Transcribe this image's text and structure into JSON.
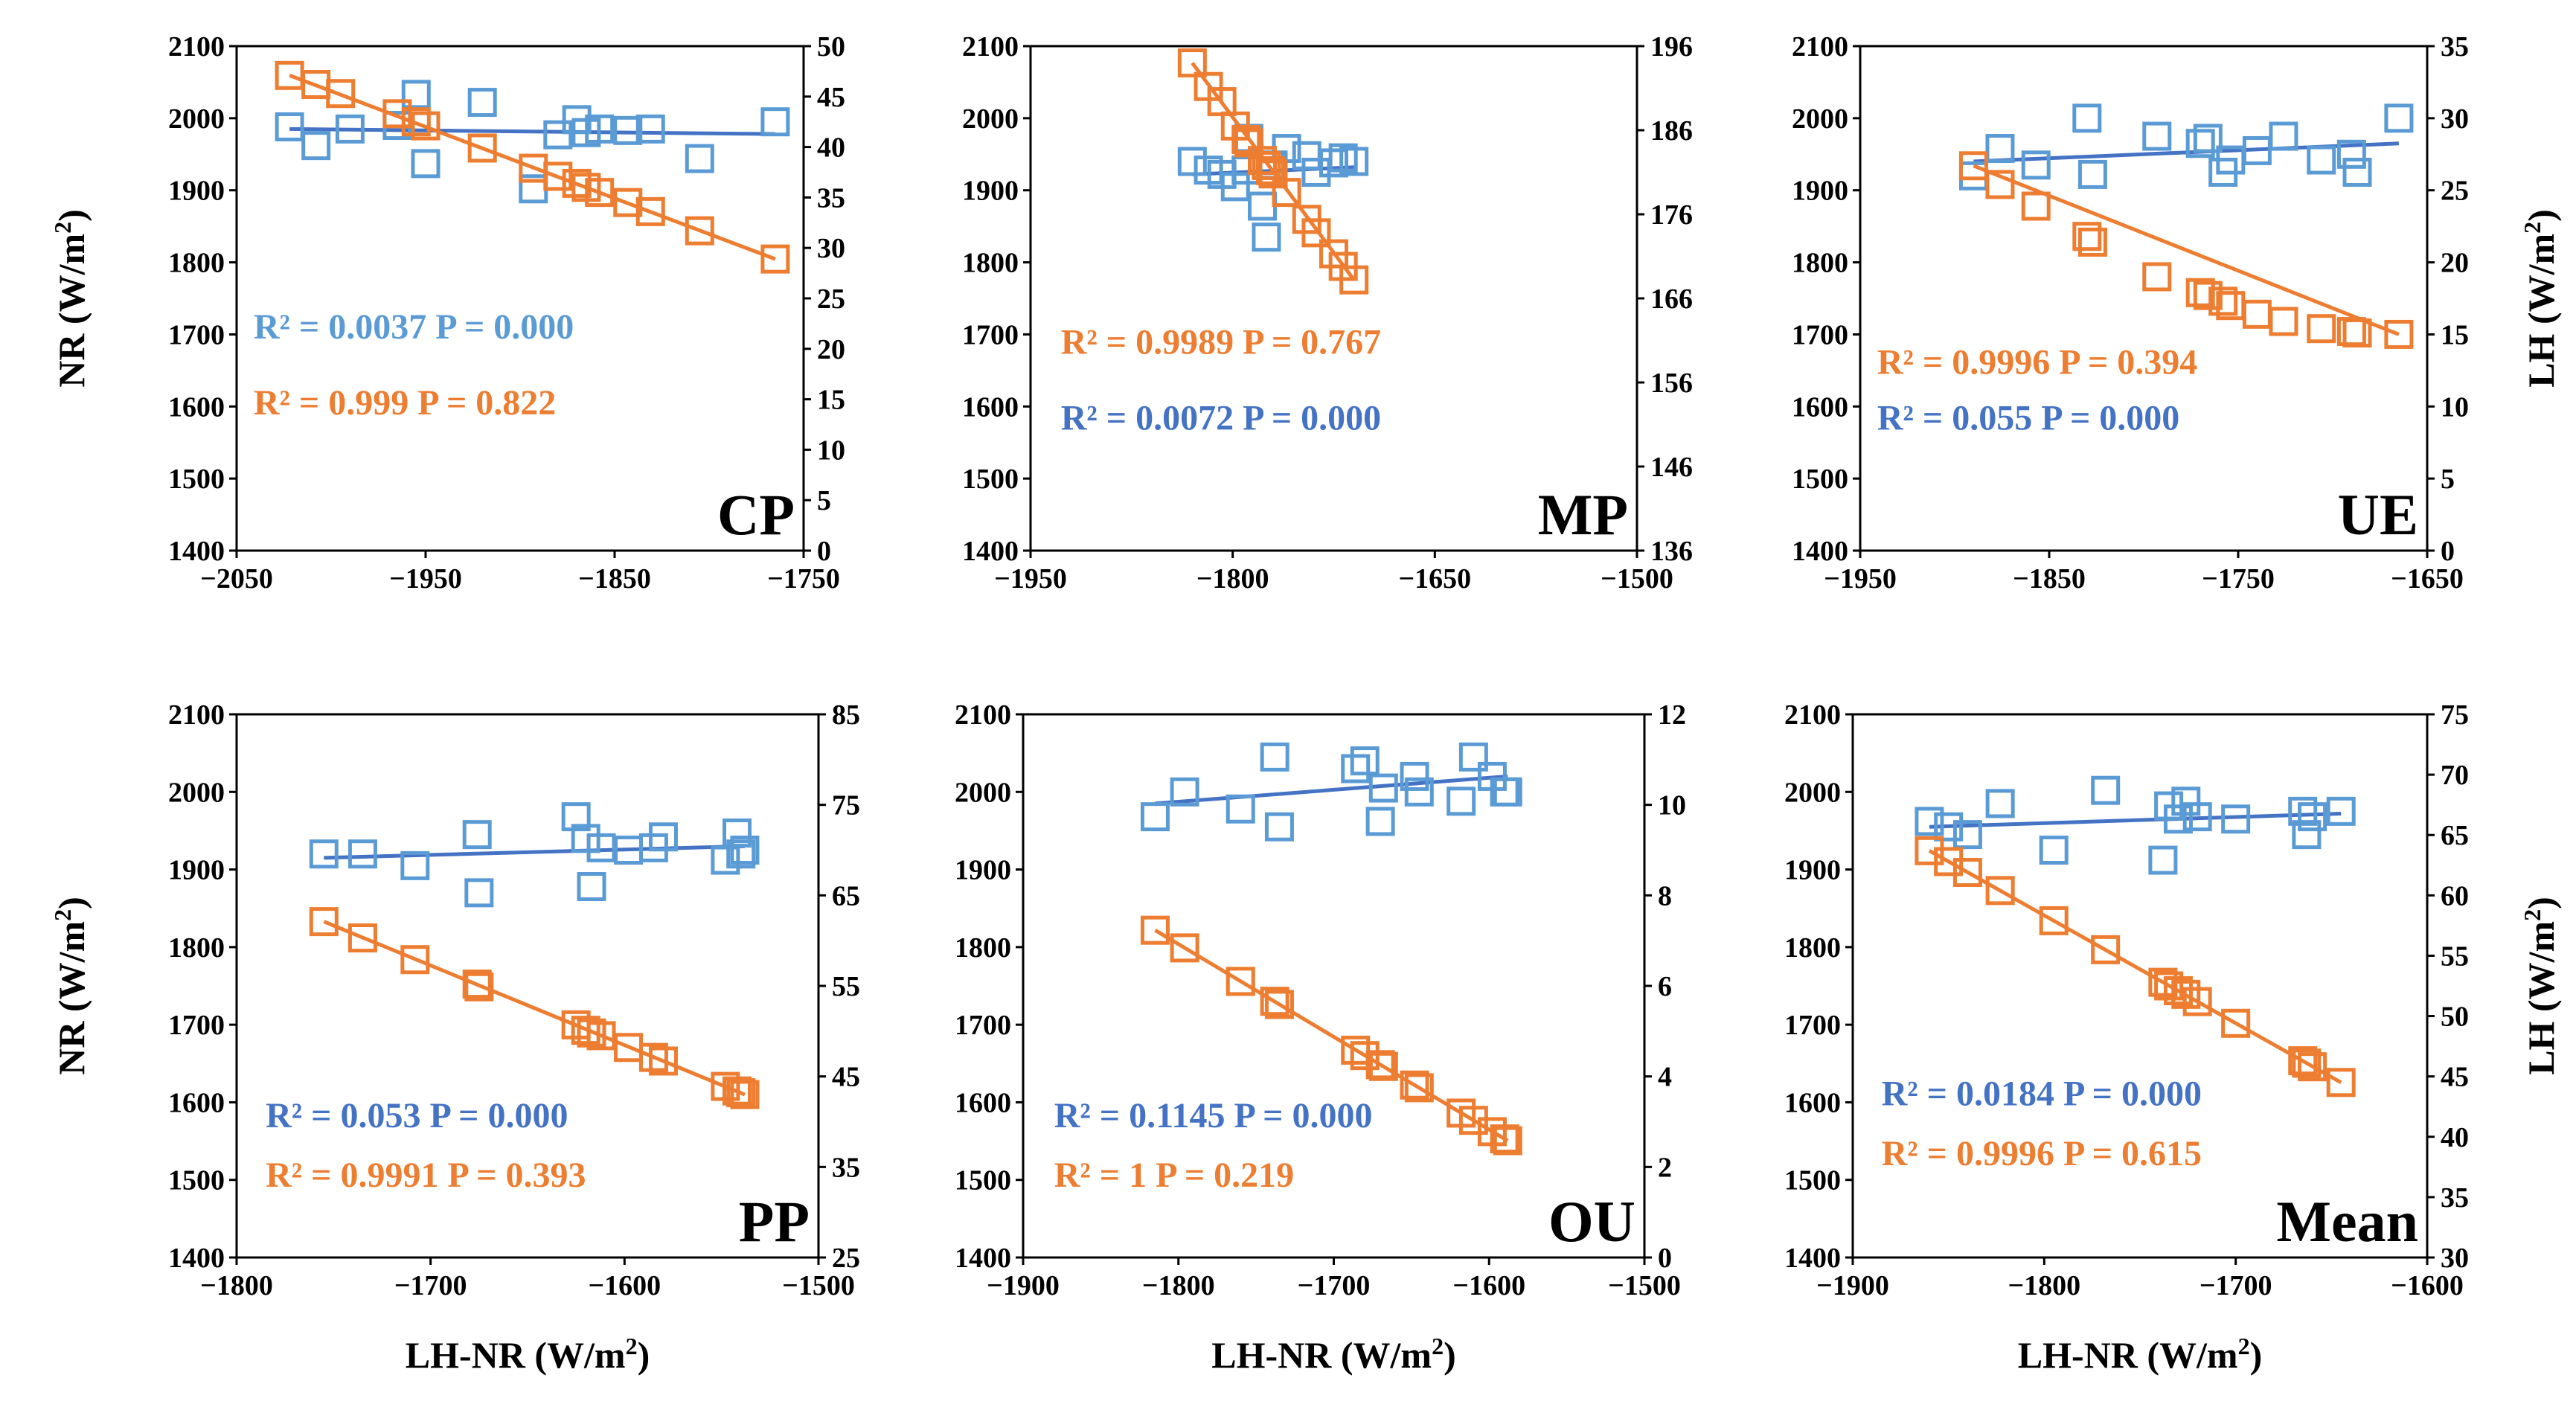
{
  "colors": {
    "series_nr": "#5b9bd5",
    "series_lh": "#ed7d31",
    "nr_fit_line": "#4472c4",
    "lh_fit_line": "#ed7d31",
    "stat_blue_light": "#5b9bd5",
    "stat_blue_dark": "#4472c4",
    "stat_orange": "#ed7d31"
  },
  "axis_labels": {
    "left_main": "NR (W/m",
    "right_main": "LH (W/m",
    "x_main": "LH-NR (W/m",
    "superscript": "2",
    "close": ")"
  },
  "chart_data": [
    {
      "type": "scatter",
      "title": "CP",
      "xlim": [
        -2050,
        -1750
      ],
      "xticks": [
        -2050,
        -1950,
        -1850,
        -1750
      ],
      "ylim": [
        1400,
        2100
      ],
      "yticks": [
        1400,
        1500,
        1600,
        1700,
        1800,
        1900,
        2000,
        2100
      ],
      "y2lim": [
        0,
        50
      ],
      "y2ticks": [
        0,
        5,
        10,
        15,
        20,
        25,
        30,
        35,
        40,
        45,
        50
      ],
      "xlabel": "",
      "show_left_label": true,
      "show_right_label": false,
      "series": [
        {
          "name": "NR",
          "axis": "left",
          "x": [
            -2022,
            -2008,
            -1990,
            -1965,
            -1955,
            -1950,
            -1920,
            -1893,
            -1880,
            -1870,
            -1865,
            -1858,
            -1843,
            -1831,
            -1805,
            -1765
          ],
          "y": [
            1988,
            1962,
            1985,
            1990,
            2033,
            1937,
            2022,
            1902,
            1977,
            1998,
            1980,
            1985,
            1983,
            1985,
            1944,
            1995
          ],
          "fit": [
            [
              -2022,
              1985
            ],
            [
              -1765,
              1978
            ]
          ]
        },
        {
          "name": "LH",
          "axis": "right",
          "x": [
            -2022,
            -2008,
            -1995,
            -1965,
            -1955,
            -1950,
            -1920,
            -1893,
            -1880,
            -1870,
            -1865,
            -1858,
            -1843,
            -1831,
            -1805,
            -1765
          ],
          "y": [
            47.1,
            46.2,
            45.3,
            43.3,
            42.5,
            42.1,
            39.9,
            37.9,
            37.1,
            36.4,
            36.0,
            35.5,
            34.5,
            33.6,
            31.7,
            28.9
          ],
          "fit": [
            [
              -2022,
              47.1
            ],
            [
              -1765,
              28.9
            ]
          ]
        }
      ],
      "stats": [
        {
          "text": "R² = 0.0037 P = 0.000",
          "color_key": "stat_blue_light"
        },
        {
          "text": "R² = 0.999 P = 0.822",
          "color_key": "stat_orange"
        }
      ]
    },
    {
      "type": "scatter",
      "title": "MP",
      "xlim": [
        -1950,
        -1500
      ],
      "xticks": [
        -1950,
        -1800,
        -1650,
        -1500
      ],
      "ylim": [
        1400,
        2100
      ],
      "yticks": [
        1400,
        1500,
        1600,
        1700,
        1800,
        1900,
        2000,
        2100
      ],
      "y2lim": [
        136,
        196
      ],
      "y2ticks": [
        136,
        146,
        156,
        166,
        176,
        186,
        196
      ],
      "xlabel": "",
      "show_left_label": false,
      "show_right_label": false,
      "series": [
        {
          "name": "NR",
          "axis": "left",
          "x": [
            -1830,
            -1818,
            -1808,
            -1798,
            -1790,
            -1788,
            -1778,
            -1775,
            -1772,
            -1770,
            -1760,
            -1745,
            -1738,
            -1725,
            -1718,
            -1710
          ],
          "y": [
            1940,
            1928,
            1922,
            1905,
            1928,
            1972,
            1878,
            1835,
            1935,
            1935,
            1958,
            1948,
            1925,
            1938,
            1945,
            1940
          ],
          "fit": [
            [
              -1830,
              1922
            ],
            [
              -1710,
              1932
            ]
          ]
        },
        {
          "name": "LH",
          "axis": "right",
          "x": [
            -1830,
            -1818,
            -1808,
            -1798,
            -1790,
            -1788,
            -1778,
            -1775,
            -1772,
            -1770,
            -1760,
            -1745,
            -1738,
            -1725,
            -1718,
            -1710
          ],
          "y": [
            194.0,
            191.2,
            189.4,
            186.5,
            184.9,
            184.5,
            182.4,
            181.8,
            181.2,
            180.8,
            178.6,
            175.4,
            173.8,
            171.3,
            169.8,
            168.2
          ],
          "fit": [
            [
              -1830,
              194.0
            ],
            [
              -1710,
              168.2
            ]
          ]
        }
      ],
      "stats": [
        {
          "text": "R² = 0.9989 P = 0.767",
          "color_key": "stat_orange"
        },
        {
          "text": "R² = 0.0072 P = 0.000",
          "color_key": "stat_blue_dark"
        }
      ]
    },
    {
      "type": "scatter",
      "title": "UE",
      "xlim": [
        -1950,
        -1650
      ],
      "xticks": [
        -1950,
        -1850,
        -1750,
        -1650
      ],
      "ylim": [
        1400,
        2100
      ],
      "yticks": [
        1400,
        1500,
        1600,
        1700,
        1800,
        1900,
        2000,
        2100
      ],
      "y2lim": [
        0,
        35
      ],
      "y2ticks": [
        0,
        5,
        10,
        15,
        20,
        25,
        30,
        35
      ],
      "xlabel": "",
      "show_left_label": false,
      "show_right_label": true,
      "series": [
        {
          "name": "NR",
          "axis": "left",
          "x": [
            -1890,
            -1876,
            -1857,
            -1830,
            -1827,
            -1793,
            -1770,
            -1766,
            -1758,
            -1754,
            -1740,
            -1726,
            -1706,
            -1690,
            -1687,
            -1665
          ],
          "y": [
            1920,
            1958,
            1935,
            2000,
            1922,
            1975,
            1965,
            1972,
            1925,
            1942,
            1955,
            1975,
            1942,
            1950,
            1925,
            2000
          ],
          "fit": [
            [
              -1890,
              1940
            ],
            [
              -1665,
              1965
            ]
          ]
        },
        {
          "name": "LH",
          "axis": "right",
          "x": [
            -1890,
            -1876,
            -1857,
            -1830,
            -1827,
            -1793,
            -1770,
            -1766,
            -1758,
            -1754,
            -1740,
            -1726,
            -1706,
            -1690,
            -1687,
            -1665
          ],
          "y": [
            26.7,
            25.4,
            23.9,
            21.8,
            21.4,
            19.0,
            17.9,
            17.7,
            17.3,
            17.0,
            16.4,
            15.9,
            15.4,
            15.2,
            15.1,
            15.0
          ],
          "fit": [
            [
              -1890,
              26.7
            ],
            [
              -1665,
              15.0
            ]
          ]
        }
      ],
      "stats": [
        {
          "text": "R² = 0.9996 P = 0.394",
          "color_key": "stat_orange"
        },
        {
          "text": "R² = 0.055 P = 0.000",
          "color_key": "stat_blue_dark"
        }
      ]
    },
    {
      "type": "scatter",
      "title": "PP",
      "xlim": [
        -1800,
        -1500
      ],
      "xticks": [
        -1800,
        -1700,
        -1600,
        -1500
      ],
      "ylim": [
        1400,
        2100
      ],
      "yticks": [
        1400,
        1500,
        1600,
        1700,
        1800,
        1900,
        2000,
        2100
      ],
      "y2lim": [
        25,
        85
      ],
      "y2ticks": [
        25,
        35,
        45,
        55,
        65,
        75,
        85
      ],
      "xlabel": "LH-NR (W/m2)",
      "show_left_label": true,
      "show_right_label": false,
      "series": [
        {
          "name": "NR",
          "axis": "left",
          "x": [
            -1755,
            -1735,
            -1708,
            -1676,
            -1675,
            -1625,
            -1620,
            -1617,
            -1612,
            -1598,
            -1585,
            -1580,
            -1548,
            -1542,
            -1540,
            -1538
          ],
          "y": [
            1920,
            1920,
            1905,
            1945,
            1870,
            1968,
            1940,
            1878,
            1928,
            1925,
            1928,
            1942,
            1912,
            1947,
            1920,
            1925
          ],
          "fit": [
            [
              -1755,
              1915
            ],
            [
              -1538,
              1930
            ]
          ]
        },
        {
          "name": "LH",
          "axis": "right",
          "x": [
            -1755,
            -1735,
            -1708,
            -1676,
            -1675,
            -1625,
            -1620,
            -1617,
            -1612,
            -1598,
            -1585,
            -1580,
            -1548,
            -1542,
            -1540,
            -1538
          ],
          "y": [
            62.1,
            60.3,
            57.9,
            55.2,
            54.9,
            50.7,
            50.1,
            49.8,
            49.5,
            48.2,
            47.1,
            46.7,
            43.9,
            43.4,
            43.2,
            43.0
          ],
          "fit": [
            [
              -1755,
              62.1
            ],
            [
              -1538,
              43.0
            ]
          ]
        }
      ],
      "stats": [
        {
          "text": "R² = 0.053 P = 0.000",
          "color_key": "stat_blue_dark"
        },
        {
          "text": "R² = 0.9991 P = 0.393",
          "color_key": "stat_orange"
        }
      ]
    },
    {
      "type": "scatter",
      "title": "OU",
      "xlim": [
        -1900,
        -1500
      ],
      "xticks": [
        -1900,
        -1800,
        -1700,
        -1600,
        -1500
      ],
      "ylim": [
        1400,
        2100
      ],
      "yticks": [
        1400,
        1500,
        1600,
        1700,
        1800,
        1900,
        2000,
        2100
      ],
      "y2lim": [
        0,
        12
      ],
      "y2ticks": [
        0,
        2,
        4,
        6,
        8,
        10,
        12
      ],
      "xlabel": "LH-NR (W/m2)",
      "show_left_label": false,
      "show_right_label": false,
      "series": [
        {
          "name": "NR",
          "axis": "left",
          "x": [
            -1815,
            -1796,
            -1760,
            -1738,
            -1735,
            -1686,
            -1680,
            -1670,
            -1668,
            -1648,
            -1645,
            -1618,
            -1610,
            -1598,
            -1590,
            -1588
          ],
          "y": [
            1968,
            2000,
            1978,
            2045,
            1955,
            2030,
            2040,
            1962,
            2005,
            2020,
            2000,
            1988,
            2045,
            2020,
            2000,
            2000
          ],
          "fit": [
            [
              -1815,
              1985
            ],
            [
              -1588,
              2020
            ]
          ]
        },
        {
          "name": "LH",
          "axis": "right",
          "x": [
            -1815,
            -1796,
            -1760,
            -1738,
            -1735,
            -1686,
            -1680,
            -1670,
            -1668,
            -1648,
            -1645,
            -1618,
            -1610,
            -1598,
            -1590,
            -1588
          ],
          "y": [
            7.23,
            6.84,
            6.1,
            5.66,
            5.59,
            4.58,
            4.46,
            4.26,
            4.22,
            3.81,
            3.75,
            3.19,
            3.03,
            2.78,
            2.62,
            2.58
          ],
          "fit": [
            [
              -1815,
              7.23
            ],
            [
              -1588,
              2.58
            ]
          ]
        }
      ],
      "stats": [
        {
          "text": "R² = 0.1145 P = 0.000",
          "color_key": "stat_blue_dark"
        },
        {
          "text": "R² = 1 P = 0.219",
          "color_key": "stat_orange"
        }
      ]
    },
    {
      "type": "scatter",
      "title": "Mean",
      "xlim": [
        -1900,
        -1600
      ],
      "xticks": [
        -1900,
        -1800,
        -1700,
        -1600
      ],
      "ylim": [
        1400,
        2100
      ],
      "yticks": [
        1400,
        1500,
        1600,
        1700,
        1800,
        1900,
        2000,
        2100
      ],
      "y2lim": [
        30,
        75
      ],
      "y2ticks": [
        30,
        35,
        40,
        45,
        50,
        55,
        60,
        65,
        70,
        75
      ],
      "xlabel": "LH-NR (W/m2)",
      "show_left_label": false,
      "show_right_label": true,
      "series": [
        {
          "name": "NR",
          "axis": "left",
          "x": [
            -1860,
            -1850,
            -1840,
            -1823,
            -1795,
            -1768,
            -1738,
            -1735,
            -1730,
            -1726,
            -1720,
            -1700,
            -1665,
            -1663,
            -1660,
            -1645
          ],
          "y": [
            1962,
            1955,
            1945,
            1985,
            1925,
            2002,
            1912,
            1982,
            1965,
            1988,
            1968,
            1965,
            1975,
            1945,
            1968,
            1975
          ],
          "fit": [
            [
              -1860,
              1955
            ],
            [
              -1645,
              1972
            ]
          ]
        },
        {
          "name": "LH",
          "axis": "right",
          "x": [
            -1860,
            -1850,
            -1840,
            -1823,
            -1795,
            -1768,
            -1738,
            -1735,
            -1730,
            -1726,
            -1720,
            -1700,
            -1665,
            -1663,
            -1660,
            -1645
          ],
          "y": [
            63.7,
            62.8,
            61.9,
            60.4,
            57.9,
            55.5,
            52.8,
            52.5,
            52.1,
            51.8,
            51.2,
            49.4,
            46.3,
            46.1,
            45.8,
            44.5
          ],
          "fit": [
            [
              -1860,
              63.7
            ],
            [
              -1645,
              44.5
            ]
          ]
        }
      ],
      "stats": [
        {
          "text": "R² = 0.0184 P = 0.000",
          "color_key": "stat_blue_dark"
        },
        {
          "text": "R² = 0.9996 P = 0.615",
          "color_key": "stat_orange"
        }
      ]
    }
  ]
}
